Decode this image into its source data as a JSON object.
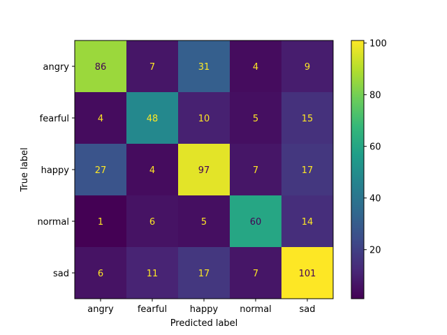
{
  "chart_data": {
    "type": "heatmap",
    "x_categories": [
      "angry",
      "fearful",
      "happy",
      "normal",
      "sad"
    ],
    "y_categories": [
      "angry",
      "fearful",
      "happy",
      "normal",
      "sad"
    ],
    "values": [
      [
        86,
        7,
        31,
        4,
        9
      ],
      [
        4,
        48,
        10,
        5,
        15
      ],
      [
        27,
        4,
        97,
        7,
        17
      ],
      [
        1,
        6,
        5,
        60,
        14
      ],
      [
        6,
        11,
        17,
        7,
        101
      ]
    ],
    "xlabel": "Predicted label",
    "ylabel": "True label",
    "colormap": "viridis",
    "colorbar": {
      "min": 1,
      "max": 101,
      "ticks": [
        20,
        40,
        60,
        80,
        100
      ]
    },
    "annotation_colors": {
      "on_dark": "#fde725",
      "on_light": "#440154"
    }
  }
}
